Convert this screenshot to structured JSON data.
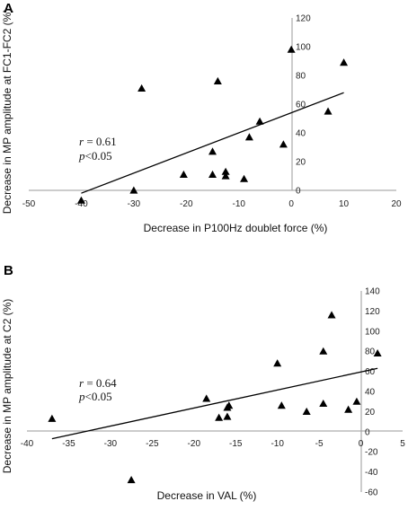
{
  "chart_data": [
    {
      "type": "scatter",
      "panel": "A",
      "xlabel": "Decrease in P100Hz doublet force (%)",
      "ylabel": "Decrease in MP amplitude at FC1-FC2 (%)",
      "xlim": [
        -50,
        20
      ],
      "ylim": [
        0,
        120
      ],
      "xticks": [
        -50,
        -40,
        -30,
        -20,
        -10,
        0,
        10,
        20
      ],
      "yticks": [
        0,
        20,
        40,
        60,
        80,
        100,
        120
      ],
      "points": [
        {
          "x": -40,
          "y": -7
        },
        {
          "x": -30,
          "y": 0
        },
        {
          "x": -28.5,
          "y": 71
        },
        {
          "x": -20.5,
          "y": 11
        },
        {
          "x": -15,
          "y": 27
        },
        {
          "x": -15,
          "y": 11
        },
        {
          "x": -14,
          "y": 76
        },
        {
          "x": -12.5,
          "y": 13
        },
        {
          "x": -12.5,
          "y": 10
        },
        {
          "x": -9,
          "y": 8
        },
        {
          "x": -8,
          "y": 37
        },
        {
          "x": -6,
          "y": 48
        },
        {
          "x": -1.5,
          "y": 32
        },
        {
          "x": 0,
          "y": 98
        },
        {
          "x": 7,
          "y": 55
        },
        {
          "x": 10,
          "y": 89
        }
      ],
      "trendline": {
        "x": [
          -40,
          10
        ],
        "y": [
          -2,
          68
        ]
      },
      "annotation": {
        "r_label": "r",
        "r_value": " = 0.61",
        "p_label": "p",
        "p_value": "<0.05"
      }
    },
    {
      "type": "scatter",
      "panel": "B",
      "xlabel": "Decrease in VAL (%)",
      "ylabel": "Decrease in MP amplitude at C2 (%)",
      "xlim": [
        -40,
        5
      ],
      "ylim": [
        -60,
        140
      ],
      "xticks": [
        -40,
        -35,
        -30,
        -25,
        -20,
        -15,
        -10,
        -5,
        0,
        5
      ],
      "yticks": [
        -60,
        -40,
        -20,
        0,
        20,
        40,
        60,
        80,
        100,
        120,
        140
      ],
      "points": [
        {
          "x": -37,
          "y": 13
        },
        {
          "x": -27.5,
          "y": -48
        },
        {
          "x": -18.5,
          "y": 33
        },
        {
          "x": -17,
          "y": 14
        },
        {
          "x": -16,
          "y": 15
        },
        {
          "x": -16,
          "y": 24
        },
        {
          "x": -15.8,
          "y": 26
        },
        {
          "x": -10,
          "y": 68
        },
        {
          "x": -9.5,
          "y": 26
        },
        {
          "x": -6.5,
          "y": 20
        },
        {
          "x": -4.5,
          "y": 80
        },
        {
          "x": -4.5,
          "y": 28
        },
        {
          "x": -3.5,
          "y": 116
        },
        {
          "x": -1.5,
          "y": 22
        },
        {
          "x": -0.5,
          "y": 30
        },
        {
          "x": 2,
          "y": 78
        }
      ],
      "trendline": {
        "x": [
          -37,
          2
        ],
        "y": [
          -7,
          63
        ]
      },
      "annotation": {
        "r_label": "r",
        "r_value": " = 0.64",
        "p_label": "p",
        "p_value": "<0.05"
      }
    }
  ]
}
